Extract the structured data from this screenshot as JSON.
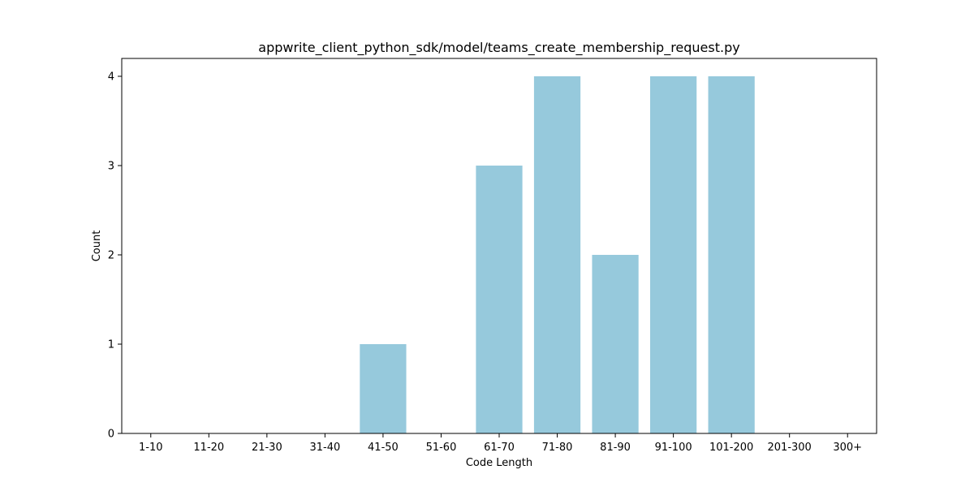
{
  "chart_data": {
    "type": "bar",
    "title": "appwrite_client_python_sdk/model/teams_create_membership_request.py",
    "xlabel": "Code Length",
    "ylabel": "Count",
    "categories": [
      "1-10",
      "11-20",
      "21-30",
      "31-40",
      "41-50",
      "51-60",
      "61-70",
      "71-80",
      "81-90",
      "91-100",
      "101-200",
      "201-300",
      "300+"
    ],
    "values": [
      0,
      0,
      0,
      0,
      1,
      0,
      3,
      4,
      2,
      4,
      4,
      0,
      0
    ],
    "yticks": [
      "0",
      "1",
      "2",
      "3",
      "4"
    ],
    "ylim": [
      0,
      4.2
    ],
    "grid": false,
    "legend": "none",
    "colors": {
      "bar": "#96c9dc",
      "axis": "#000000",
      "background": "#ffffff"
    }
  }
}
